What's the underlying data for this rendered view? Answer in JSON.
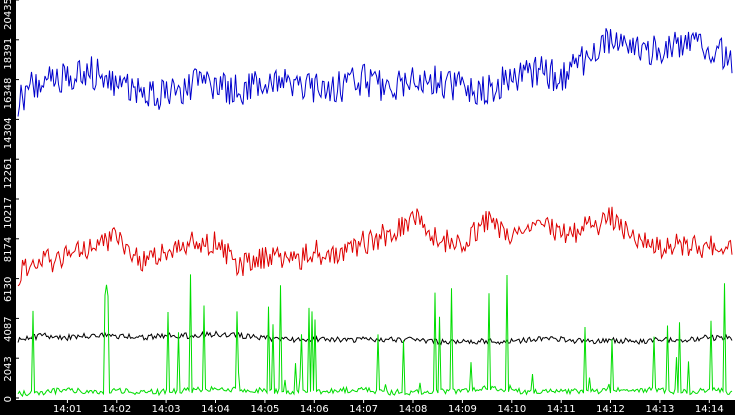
{
  "chart_data": {
    "type": "line",
    "title": "",
    "xlabel": "",
    "ylabel": "",
    "y_axis_labels": [
      "0",
      "2043",
      "4087",
      "6130",
      "8174",
      "10217",
      "12261",
      "14304",
      "16348",
      "18391",
      "20435"
    ],
    "x_axis_labels": [
      "14:01",
      "14:02",
      "14:03",
      "14:04",
      "14:05",
      "14:06",
      "14:07",
      "14:08",
      "14:09",
      "14:10",
      "14:11",
      "14:12",
      "14:13",
      "14:14"
    ],
    "ylim": [
      0,
      20435
    ],
    "xlim_minutes": [
      0.0,
      14.48
    ],
    "x_tick_minutes": [
      1,
      2,
      3,
      4,
      5,
      6,
      7,
      8,
      9,
      10,
      11,
      12,
      13,
      14
    ],
    "grid": false,
    "legend": "none",
    "colors": {
      "axis_bar": "#000000",
      "axis_text": "#ffffff",
      "background": "#ffffff"
    },
    "series": [
      {
        "color": "#0000cc",
        "x": [
          0,
          0.5,
          1,
          1.5,
          2,
          2.5,
          3,
          3.5,
          4,
          4.5,
          5,
          5.5,
          6,
          6.5,
          7,
          7.5,
          8,
          8.5,
          9,
          9.5,
          10,
          10.5,
          11,
          11.5,
          12,
          12.5,
          13,
          13.5,
          14,
          14.48
        ],
        "values": [
          15300,
          16400,
          16500,
          16700,
          16100,
          15700,
          15600,
          16100,
          16000,
          15800,
          16300,
          16200,
          15800,
          16000,
          16300,
          15900,
          16500,
          16300,
          15900,
          15800,
          16500,
          16800,
          16400,
          17400,
          18300,
          18100,
          17800,
          18400,
          17800,
          17500
        ]
      },
      {
        "color": "#dd0000",
        "x": [
          0,
          0.5,
          1,
          1.5,
          2,
          2.5,
          3,
          3.5,
          4,
          4.5,
          5,
          5.5,
          6,
          6.5,
          7,
          7.5,
          8,
          8.5,
          9,
          9.5,
          10,
          10.5,
          11,
          11.5,
          12,
          12.5,
          13,
          13.5,
          14,
          14.48
        ],
        "values": [
          6400,
          6900,
          7400,
          7800,
          8400,
          7000,
          7500,
          7900,
          7900,
          6800,
          7300,
          7000,
          7500,
          7400,
          8000,
          8400,
          9300,
          8100,
          8000,
          9100,
          8500,
          8800,
          8400,
          8700,
          9300,
          8400,
          7600,
          7900,
          7800,
          8000
        ]
      },
      {
        "color": "#000000",
        "x": [
          0,
          0.5,
          1,
          1.5,
          2,
          2.5,
          3,
          3.5,
          4,
          4.5,
          5,
          5.5,
          6,
          6.5,
          7,
          7.5,
          8,
          8.5,
          9,
          9.5,
          10,
          10.5,
          11,
          11.5,
          12,
          12.5,
          13,
          13.5,
          14,
          14.48
        ],
        "values": [
          3000,
          3200,
          3100,
          3200,
          3200,
          3100,
          3200,
          3200,
          3300,
          3200,
          3100,
          3000,
          3000,
          3000,
          3000,
          3000,
          3000,
          2900,
          2900,
          2900,
          2900,
          3000,
          3000,
          2900,
          3000,
          2900,
          3000,
          3000,
          3100,
          3100
        ]
      },
      {
        "color": "#00dd00",
        "x": [
          0,
          0.5,
          1,
          1.5,
          2,
          2.5,
          3,
          3.5,
          4,
          4.5,
          5,
          5.5,
          6,
          6.5,
          7,
          7.5,
          8,
          8.5,
          9,
          9.5,
          10,
          10.5,
          11,
          11.5,
          12,
          12.5,
          13,
          13.5,
          14,
          14.48
        ],
        "values": [
          200,
          300,
          400,
          300,
          400,
          300,
          300,
          400,
          500,
          400,
          400,
          300,
          300,
          400,
          400,
          300,
          300,
          300,
          400,
          500,
          400,
          300,
          400,
          300,
          400,
          400,
          400,
          300,
          400,
          300
        ]
      }
    ]
  }
}
